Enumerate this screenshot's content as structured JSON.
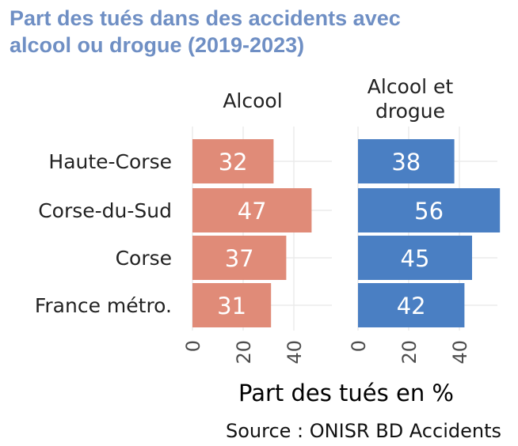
{
  "title_lines": [
    "Part des tués dans des accidents avec",
    "alcool ou drogue (2019-2023)"
  ],
  "source": "Source : ONISR BD Accidents",
  "colors": {
    "alcool": "#e08b78",
    "alcool_drogue": "#4a7fc3",
    "title": "#6f8fc4",
    "grid": "#ebebeb"
  },
  "chart_data": {
    "type": "bar",
    "orientation": "horizontal",
    "categories": [
      "Haute-Corse",
      "Corse-du-Sud",
      "Corse",
      "France métro."
    ],
    "xlabel": "Part des tués en %",
    "xticks": [
      0,
      20,
      40
    ],
    "xlim": [
      0,
      55
    ],
    "grid": true,
    "panels": [
      {
        "name": "Alcool",
        "label_lines": [
          "Alcool"
        ],
        "values": [
          32,
          47,
          37,
          31
        ]
      },
      {
        "name": "Alcool et drogue",
        "label_lines": [
          "Alcool et",
          "drogue"
        ],
        "values": [
          38,
          56,
          45,
          42
        ]
      }
    ]
  }
}
